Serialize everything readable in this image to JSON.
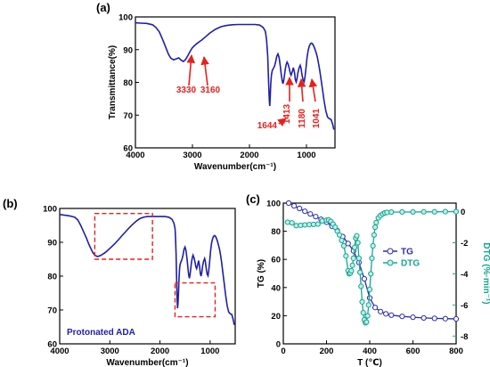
{
  "colors": {
    "spectrum": "#1f1fa8",
    "annotation": "#e8201c",
    "dashed_box": "#e8201c",
    "tg": "#2b2bb0",
    "dtg": "#16a592",
    "axis": "#000000"
  },
  "chart_data": [
    {
      "type": "line",
      "panel_label": "(a)",
      "xlabel": "Wavenumber(cm⁻¹)",
      "ylabel": "Transmittance(%)",
      "xlim": [
        4000,
        500
      ],
      "ylim": [
        60,
        100
      ],
      "x_ticks": [
        4000,
        3000,
        2000,
        1000
      ],
      "y_ticks": [
        60,
        70,
        80,
        90,
        100
      ],
      "series": [
        {
          "x": [
            4000,
            3900,
            3800,
            3700,
            3640,
            3580,
            3520,
            3460,
            3420,
            3380,
            3330,
            3280,
            3240,
            3200,
            3160,
            3120,
            3080,
            3040,
            3000,
            2960,
            2920,
            2880,
            2840,
            2780,
            2700,
            2600,
            2500,
            2400,
            2300,
            2200,
            2100,
            2000,
            1900,
            1820,
            1760,
            1720,
            1700,
            1680,
            1664,
            1652,
            1644,
            1636,
            1626,
            1614,
            1600,
            1580,
            1560,
            1540,
            1520,
            1500,
            1480,
            1460,
            1440,
            1425,
            1413,
            1400,
            1385,
            1370,
            1355,
            1340,
            1320,
            1300,
            1285,
            1270,
            1250,
            1230,
            1210,
            1195,
            1180,
            1165,
            1150,
            1130,
            1110,
            1095,
            1080,
            1060,
            1041,
            1025,
            1010,
            990,
            970,
            950,
            930,
            910,
            890,
            870,
            850,
            830,
            810,
            790,
            770,
            750,
            720,
            690,
            660,
            630,
            600,
            570,
            540,
            520
          ],
          "y": [
            98.2,
            98.1,
            98.0,
            97.6,
            96.8,
            95.4,
            93.0,
            90.3,
            88.6,
            87.4,
            86.9,
            87.2,
            87.5,
            86.8,
            86.4,
            87.0,
            88.2,
            89.5,
            90.6,
            91.3,
            91.9,
            92.4,
            92.9,
            93.8,
            95.0,
            96.2,
            97.0,
            97.4,
            97.6,
            97.7,
            97.7,
            97.7,
            97.7,
            97.5,
            96.8,
            95.6,
            93.0,
            88.0,
            80.0,
            74.5,
            72.8,
            75.5,
            79.5,
            82.3,
            83.6,
            84.3,
            85.0,
            86.3,
            88.0,
            88.7,
            87.6,
            85.0,
            82.2,
            80.4,
            79.6,
            80.5,
            82.4,
            84.2,
            85.5,
            86.2,
            85.5,
            84.1,
            82.8,
            82.2,
            83.2,
            84.5,
            83.0,
            80.8,
            80.1,
            81.2,
            83.0,
            84.4,
            85.2,
            84.3,
            82.4,
            80.7,
            80.2,
            81.8,
            84.2,
            87.5,
            89.8,
            91.1,
            91.8,
            92.0,
            91.7,
            91.0,
            90.1,
            89.0,
            87.7,
            86.0,
            84.0,
            81.6,
            78.0,
            74.3,
            71.2,
            69.4,
            68.9,
            68.7,
            67.2,
            65.6
          ]
        }
      ],
      "annotations": [
        {
          "label": "3330",
          "x": 3330
        },
        {
          "label": "3160",
          "x": 3160
        },
        {
          "label": "1644",
          "x": 1644
        },
        {
          "label": "1413",
          "x": 1413
        },
        {
          "label": "1180",
          "x": 1180
        },
        {
          "label": "1041",
          "x": 1041
        }
      ]
    },
    {
      "type": "line",
      "panel_label": "(b)",
      "xlabel": "Wavenumber(cm⁻¹)",
      "ylabel": "",
      "xlim": [
        4000,
        500
      ],
      "ylim": [
        60,
        100
      ],
      "x_ticks": [
        4000,
        3000,
        2000,
        1000
      ],
      "y_ticks": [
        60,
        70,
        80,
        90,
        100
      ],
      "annotation_text": "Protonated ADA",
      "highlight_regions": [
        {
          "x": [
            3300,
            2150
          ],
          "y": [
            85,
            98.5
          ]
        },
        {
          "x": [
            1700,
            900
          ],
          "y": [
            68,
            78
          ]
        }
      ],
      "series": [
        {
          "x": [
            4000,
            3900,
            3800,
            3700,
            3640,
            3580,
            3520,
            3460,
            3420,
            3380,
            3340,
            3300,
            3250,
            3200,
            3150,
            3100,
            3050,
            3000,
            2950,
            2900,
            2850,
            2800,
            2750,
            2700,
            2650,
            2600,
            2550,
            2500,
            2450,
            2400,
            2350,
            2300,
            2250,
            2200,
            2150,
            2100,
            2000,
            1900,
            1820,
            1760,
            1720,
            1700,
            1690,
            1680,
            1670,
            1664,
            1658,
            1650,
            1640,
            1630,
            1620,
            1610,
            1600,
            1580,
            1560,
            1540,
            1520,
            1500,
            1480,
            1460,
            1440,
            1425,
            1413,
            1400,
            1385,
            1370,
            1355,
            1340,
            1320,
            1300,
            1285,
            1270,
            1250,
            1230,
            1210,
            1195,
            1180,
            1165,
            1150,
            1130,
            1110,
            1095,
            1080,
            1060,
            1041,
            1025,
            1010,
            990,
            970,
            950,
            930,
            910,
            890,
            870,
            850,
            830,
            810,
            790,
            770,
            750,
            720,
            690,
            660,
            630,
            600,
            570,
            540,
            520
          ],
          "y": [
            98.2,
            98.0,
            97.8,
            97.4,
            96.6,
            95.0,
            93.0,
            91.0,
            89.5,
            88.2,
            87.0,
            86.2,
            85.8,
            86.0,
            86.4,
            86.9,
            87.5,
            88.2,
            88.9,
            89.6,
            90.4,
            91.2,
            92.1,
            92.9,
            93.7,
            94.5,
            95.2,
            95.9,
            96.5,
            97.0,
            97.3,
            97.5,
            97.6,
            97.6,
            97.6,
            97.6,
            97.6,
            97.6,
            97.4,
            96.8,
            95.6,
            94.0,
            91.5,
            87.0,
            81.0,
            76.5,
            73.0,
            70.5,
            72.0,
            75.5,
            79.5,
            82.0,
            83.4,
            84.3,
            85.0,
            86.3,
            88.0,
            88.6,
            87.5,
            85.0,
            82.0,
            80.2,
            79.4,
            80.4,
            82.4,
            84.2,
            85.5,
            86.2,
            85.4,
            84.0,
            82.8,
            82.2,
            83.2,
            84.6,
            83.0,
            80.7,
            80.0,
            81.2,
            83.0,
            84.4,
            85.2,
            84.3,
            82.4,
            80.6,
            80.1,
            81.8,
            84.2,
            87.5,
            89.8,
            91.1,
            91.8,
            92.0,
            91.7,
            91.0,
            90.1,
            89.0,
            87.7,
            86.0,
            84.0,
            81.6,
            78.0,
            74.3,
            71.2,
            69.4,
            68.9,
            68.7,
            67.2,
            65.6
          ]
        }
      ]
    },
    {
      "type": "line",
      "panel_label": "(c)",
      "xlabel": "T (℃)",
      "ylabel": "TG (%)",
      "ylabel_right": "DTG (%·min⁻¹)",
      "xlim": [
        0,
        800
      ],
      "ylim": [
        0,
        100
      ],
      "ylim_right": [
        -8.5,
        0.55
      ],
      "x_ticks": [
        0,
        200,
        400,
        600,
        800
      ],
      "y_ticks": [
        0,
        20,
        40,
        60,
        80,
        100
      ],
      "y_ticks_right": [
        -8,
        -6,
        -4,
        -2,
        0
      ],
      "legend_position": "right",
      "series": [
        {
          "name": "TG",
          "axis": "left",
          "marker": "circle-half",
          "x": [
            25,
            50,
            75,
            100,
            125,
            150,
            175,
            200,
            225,
            250,
            275,
            300,
            325,
            350,
            375,
            400,
            425,
            450,
            475,
            500,
            550,
            600,
            650,
            700,
            750,
            800
          ],
          "y": [
            100,
            98.0,
            96.2,
            94.2,
            92.3,
            90.4,
            88.5,
            86.4,
            83.6,
            80.4,
            76.2,
            71.3,
            66.0,
            57.8,
            46.2,
            32.6,
            25.8,
            22.9,
            21.3,
            20.4,
            19.5,
            18.9,
            18.4,
            18.1,
            17.9,
            17.7
          ]
        },
        {
          "name": "DTG",
          "axis": "right",
          "marker": "circle-half",
          "x": [
            20,
            40,
            60,
            80,
            100,
            120,
            140,
            160,
            180,
            200,
            210,
            220,
            230,
            240,
            250,
            260,
            270,
            280,
            290,
            300,
            305,
            310,
            315,
            320,
            325,
            330,
            335,
            340,
            345,
            350,
            355,
            360,
            365,
            370,
            375,
            380,
            385,
            390,
            395,
            400,
            405,
            410,
            415,
            420,
            425,
            430,
            440,
            450,
            460,
            470,
            480,
            500,
            550,
            600,
            650,
            700,
            750,
            800
          ],
          "y": [
            -0.68,
            -0.72,
            -0.9,
            -0.88,
            -0.85,
            -0.83,
            -0.82,
            -0.8,
            -0.6,
            -0.55,
            -0.54,
            -0.63,
            -0.8,
            -1.0,
            -1.25,
            -1.5,
            -1.85,
            -2.2,
            -2.85,
            -3.8,
            -4.0,
            -3.95,
            -3.8,
            -3.45,
            -3.0,
            -2.3,
            -1.7,
            -1.55,
            -2.0,
            -3.0,
            -3.9,
            -4.8,
            -5.8,
            -6.5,
            -6.95,
            -7.15,
            -7.1,
            -6.7,
            -6.0,
            -5.0,
            -4.0,
            -3.0,
            -2.2,
            -1.5,
            -1.0,
            -0.7,
            -0.4,
            -0.25,
            -0.15,
            -0.08,
            -0.05,
            -0.03,
            -0.02,
            -0.02,
            -0.01,
            -0.01,
            0.0,
            0.0
          ]
        }
      ]
    }
  ]
}
